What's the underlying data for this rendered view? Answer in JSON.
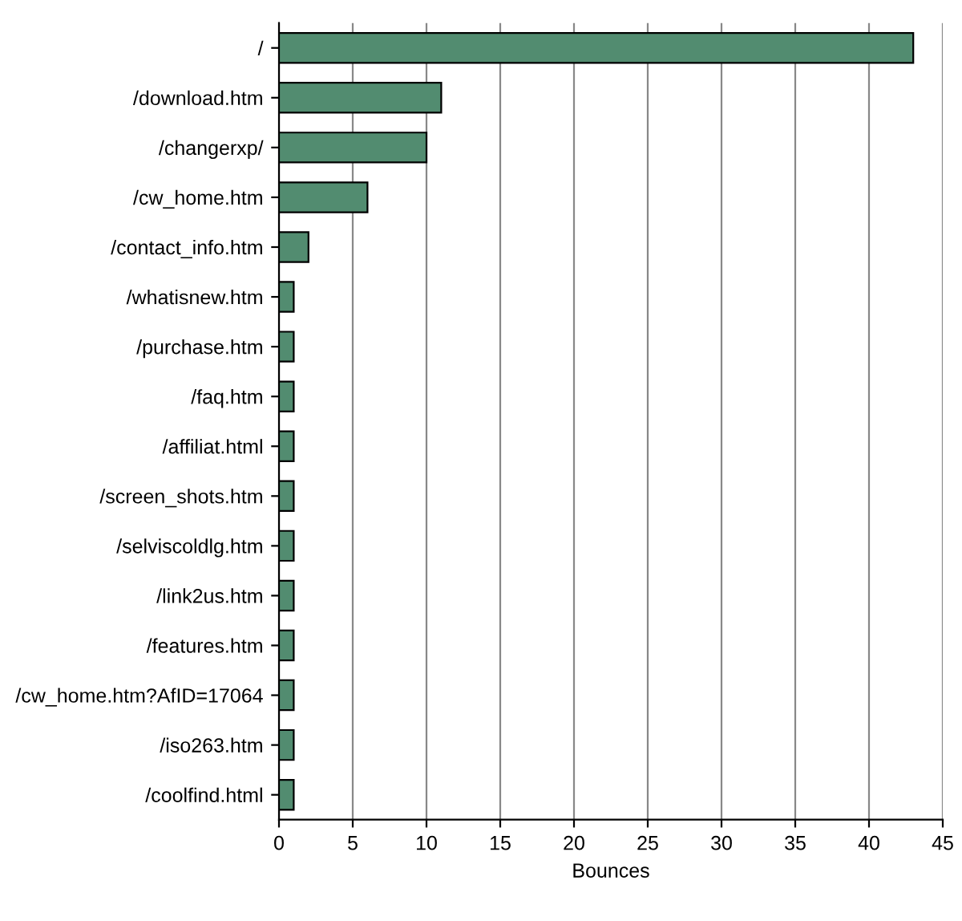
{
  "chart_data": {
    "type": "bar",
    "orientation": "horizontal",
    "xlabel": "Bounces",
    "categories": [
      "/",
      "/download.htm",
      "/changerxp/",
      "/cw_home.htm",
      "/contact_info.htm",
      "/whatisnew.htm",
      "/purchase.htm",
      "/faq.htm",
      "/affiliat.html",
      "/screen_shots.htm",
      "/selviscoldlg.htm",
      "/link2us.htm",
      "/features.htm",
      "/cw_home.htm?AfID=17064",
      "/iso263.htm",
      "/coolfind.html"
    ],
    "values": [
      43,
      11,
      10,
      6,
      2,
      1,
      1,
      1,
      1,
      1,
      1,
      1,
      1,
      1,
      1,
      1
    ],
    "color": "#528c70",
    "xlim": [
      0,
      45
    ],
    "xticks": [
      0,
      5,
      10,
      15,
      20,
      25,
      30,
      35,
      40,
      45
    ],
    "grid": "x",
    "legend": false
  }
}
